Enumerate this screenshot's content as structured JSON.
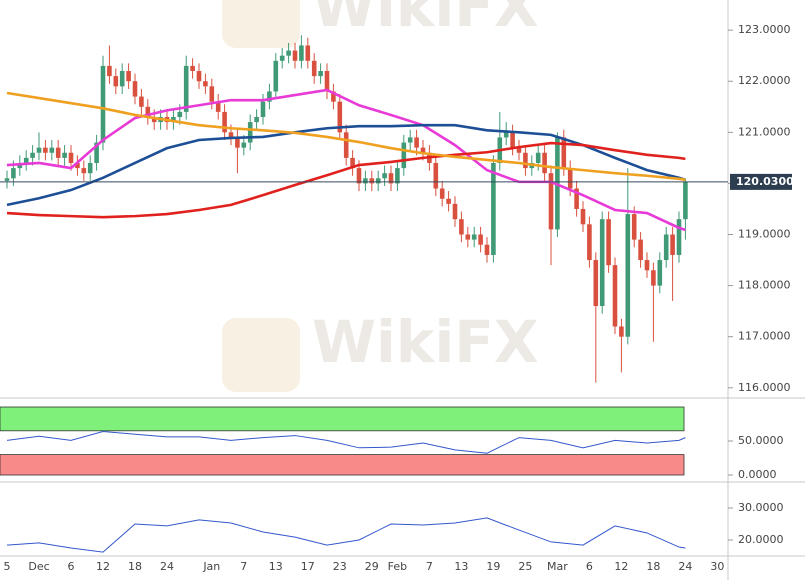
{
  "watermark": "WikiFX",
  "chart_data": [
    {
      "type": "candlestick",
      "up_color": "#3f9a75",
      "down_color": "#d9503f",
      "categories": [
        "5",
        null,
        null,
        null,
        null,
        "Dec",
        null,
        null,
        null,
        null,
        "6",
        null,
        null,
        null,
        null,
        "12",
        null,
        null,
        null,
        null,
        "18",
        null,
        null,
        null,
        null,
        "24",
        null,
        null,
        null,
        null,
        null,
        null,
        "Jan",
        null,
        null,
        null,
        null,
        "7",
        null,
        null,
        null,
        null,
        "13",
        null,
        null,
        null,
        null,
        "17",
        null,
        null,
        null,
        null,
        "23",
        null,
        null,
        null,
        null,
        "29",
        null,
        null,
        null,
        "Feb",
        null,
        null,
        null,
        null,
        "7",
        null,
        null,
        null,
        null,
        "13",
        null,
        null,
        null,
        null,
        "19",
        null,
        null,
        null,
        null,
        "25",
        null,
        null,
        null,
        null,
        "Mar",
        null,
        null,
        null,
        null,
        "6",
        null,
        null,
        null,
        null,
        "12",
        null,
        null,
        null,
        null,
        "18",
        null,
        null,
        null,
        null,
        "24",
        null,
        null,
        null,
        null,
        "30"
      ],
      "open": [
        120.05,
        120.1,
        120.3,
        120.4,
        120.5,
        120.6,
        120.7,
        120.6,
        120.7,
        120.5,
        120.6,
        120.4,
        120.3,
        120.2,
        120.4,
        120.8,
        122.3,
        122.1,
        121.9,
        122.2,
        122.0,
        121.7,
        121.5,
        121.3,
        121.2,
        121.3,
        121.2,
        121.3,
        121.4,
        122.3,
        122.2,
        122.0,
        121.9,
        121.6,
        121.4,
        121.0,
        120.9,
        120.7,
        120.8,
        121.2,
        121.3,
        121.6,
        121.8,
        122.4,
        122.5,
        122.6,
        122.4,
        122.7,
        122.4,
        122.1,
        122.2,
        121.8,
        121.6,
        121.0,
        120.5,
        120.3,
        120.0,
        120.1,
        120.0,
        120.1,
        120.2,
        120.0,
        120.3,
        120.8,
        120.9,
        120.7,
        120.6,
        120.4,
        119.9,
        119.7,
        119.6,
        119.3,
        119.0,
        118.9,
        119.0,
        118.8,
        118.6,
        120.4,
        120.9,
        121.0,
        120.7,
        120.6,
        120.3,
        120.4,
        120.6,
        120.2,
        119.1,
        120.9,
        120.3,
        119.9,
        119.5,
        119.2,
        118.5,
        117.6,
        119.3,
        118.4,
        117.2,
        117.0,
        119.4,
        118.9,
        118.5,
        118.3,
        118.0,
        118.5,
        119.0,
        118.6,
        119.3,
        null,
        null,
        null,
        null,
        null
      ],
      "high": [
        120.25,
        120.45,
        120.55,
        120.65,
        120.75,
        121.0,
        120.85,
        120.85,
        120.85,
        120.75,
        120.75,
        120.55,
        120.45,
        120.55,
        120.95,
        122.5,
        122.7,
        122.25,
        122.35,
        122.35,
        122.15,
        121.85,
        121.65,
        121.45,
        121.45,
        121.45,
        121.45,
        121.55,
        122.5,
        122.45,
        122.35,
        122.15,
        122.05,
        121.75,
        121.55,
        121.15,
        121.05,
        120.95,
        121.35,
        121.45,
        121.75,
        121.95,
        122.55,
        122.65,
        122.75,
        122.75,
        122.9,
        122.85,
        122.55,
        122.35,
        122.35,
        121.95,
        121.75,
        121.15,
        120.65,
        120.45,
        120.25,
        120.25,
        120.25,
        120.35,
        120.35,
        120.45,
        120.95,
        121.05,
        121.05,
        120.85,
        120.75,
        120.55,
        120.05,
        119.85,
        119.75,
        119.45,
        119.15,
        119.15,
        119.15,
        118.95,
        120.55,
        121.4,
        121.2,
        121.15,
        120.85,
        120.75,
        120.55,
        120.75,
        120.75,
        120.35,
        121.0,
        121.05,
        120.45,
        120.05,
        119.65,
        119.35,
        118.65,
        119.45,
        119.45,
        118.55,
        117.35,
        120.3,
        119.55,
        119.05,
        118.65,
        118.45,
        118.65,
        119.15,
        119.15,
        119.45,
        120.1,
        null,
        null,
        null,
        null,
        null
      ],
      "low": [
        119.9,
        119.95,
        120.15,
        120.25,
        120.35,
        120.45,
        120.45,
        120.45,
        120.35,
        120.35,
        120.25,
        120.15,
        120.05,
        120.05,
        120.25,
        120.65,
        121.95,
        121.75,
        121.75,
        121.85,
        121.55,
        121.35,
        121.15,
        121.05,
        121.05,
        121.05,
        121.05,
        121.15,
        121.25,
        122.05,
        121.85,
        121.75,
        121.45,
        121.25,
        120.85,
        120.75,
        120.2,
        120.55,
        120.65,
        121.05,
        121.15,
        121.45,
        121.65,
        122.25,
        122.35,
        122.25,
        122.25,
        122.25,
        121.95,
        121.95,
        121.65,
        121.45,
        120.85,
        120.35,
        120.15,
        119.85,
        119.85,
        119.85,
        119.85,
        119.95,
        119.85,
        119.85,
        120.15,
        120.65,
        120.55,
        120.45,
        120.25,
        119.75,
        119.55,
        119.45,
        119.15,
        118.85,
        118.75,
        118.75,
        118.65,
        118.45,
        118.45,
        120.25,
        120.75,
        120.55,
        120.45,
        120.15,
        120.15,
        120.25,
        120.05,
        118.4,
        118.95,
        120.15,
        119.75,
        119.35,
        119.05,
        118.35,
        116.1,
        117.45,
        118.25,
        117.05,
        116.3,
        116.85,
        118.75,
        118.35,
        118.15,
        116.9,
        117.85,
        118.35,
        117.7,
        118.45,
        118.9,
        null,
        null,
        null,
        null,
        null
      ],
      "close": [
        120.1,
        120.3,
        120.4,
        120.5,
        120.6,
        120.7,
        120.6,
        120.7,
        120.5,
        120.6,
        120.4,
        120.3,
        120.2,
        120.4,
        120.8,
        122.3,
        122.1,
        121.9,
        122.2,
        122.0,
        121.7,
        121.5,
        121.3,
        121.2,
        121.3,
        121.2,
        121.3,
        121.4,
        122.3,
        122.2,
        122.0,
        121.9,
        121.6,
        121.4,
        121.0,
        120.9,
        120.7,
        120.8,
        121.2,
        121.3,
        121.6,
        121.8,
        122.4,
        122.5,
        122.6,
        122.4,
        122.7,
        122.4,
        122.1,
        122.2,
        121.8,
        121.6,
        121.0,
        120.5,
        120.3,
        120.0,
        120.1,
        120.0,
        120.1,
        120.2,
        120.0,
        120.3,
        120.8,
        120.9,
        120.7,
        120.6,
        120.4,
        119.9,
        119.7,
        119.6,
        119.3,
        119.0,
        118.9,
        119.0,
        118.8,
        118.6,
        120.4,
        120.9,
        121.0,
        120.7,
        120.6,
        120.3,
        120.4,
        120.6,
        120.2,
        119.1,
        120.9,
        120.3,
        119.9,
        119.5,
        119.2,
        118.5,
        117.6,
        119.3,
        118.4,
        117.2,
        117.0,
        119.4,
        118.9,
        118.5,
        118.3,
        118.0,
        118.5,
        119.0,
        118.6,
        119.3,
        120.03,
        null,
        null,
        null,
        null,
        null
      ],
      "lines": [
        {
          "color": "#e83ad6",
          "x": [
            0,
            5,
            10,
            15,
            20,
            25,
            30,
            35,
            40,
            45,
            50,
            55,
            60,
            65,
            70,
            75,
            80,
            85,
            90,
            95,
            100,
            105,
            106
          ],
          "values": [
            120.36,
            120.4,
            120.3,
            120.85,
            121.28,
            121.43,
            121.53,
            121.63,
            121.63,
            121.73,
            121.83,
            121.53,
            121.34,
            121.14,
            120.75,
            120.26,
            120.03,
            120.03,
            119.77,
            119.48,
            119.42,
            119.13,
            119.09
          ]
        },
        {
          "color": "#1d4f96",
          "x": [
            0,
            5,
            10,
            15,
            20,
            25,
            30,
            35,
            40,
            45,
            50,
            55,
            60,
            65,
            70,
            75,
            80,
            85,
            90,
            95,
            100,
            105,
            106
          ],
          "values": [
            119.58,
            119.71,
            119.87,
            120.11,
            120.4,
            120.69,
            120.85,
            120.89,
            120.91,
            121.0,
            121.08,
            121.12,
            121.12,
            121.14,
            121.14,
            121.04,
            121.0,
            120.95,
            120.75,
            120.5,
            120.26,
            120.11,
            120.07
          ]
        },
        {
          "color": "#e0211d",
          "x": [
            0,
            5,
            10,
            15,
            20,
            25,
            30,
            35,
            40,
            45,
            50,
            55,
            60,
            65,
            70,
            75,
            80,
            85,
            90,
            95,
            100,
            105,
            106
          ],
          "values": [
            119.42,
            119.38,
            119.36,
            119.34,
            119.36,
            119.4,
            119.48,
            119.58,
            119.77,
            119.97,
            120.16,
            120.36,
            120.42,
            120.5,
            120.56,
            120.61,
            120.71,
            120.79,
            120.75,
            120.65,
            120.56,
            120.5,
            120.48
          ]
        },
        {
          "color": "#f0a020",
          "x": [
            0,
            5,
            10,
            15,
            20,
            25,
            30,
            35,
            40,
            45,
            50,
            55,
            60,
            65,
            70,
            75,
            80,
            85,
            90,
            95,
            100,
            105,
            106
          ],
          "values": [
            121.77,
            121.67,
            121.57,
            121.47,
            121.34,
            121.24,
            121.14,
            121.08,
            121.04,
            120.99,
            120.91,
            120.81,
            120.69,
            120.59,
            120.52,
            120.46,
            120.4,
            120.32,
            120.26,
            120.2,
            120.15,
            120.09,
            120.07
          ]
        }
      ],
      "last_price": {
        "value": 120.03,
        "label": "120.0300"
      },
      "ylim": [
        115.8,
        123.59
      ],
      "yticks": [
        {
          "value": 116,
          "label": "116.0000"
        },
        {
          "value": 117,
          "label": "117.0000"
        },
        {
          "value": 118,
          "label": "118.0000"
        },
        {
          "value": 119,
          "label": "119.0000"
        },
        {
          "value": 120,
          "label": "120.0000"
        },
        {
          "value": 121,
          "label": "121.0000"
        },
        {
          "value": 122,
          "label": "122.0000"
        },
        {
          "value": 123,
          "label": "123.0000"
        }
      ]
    },
    {
      "type": "line",
      "zones": [
        {
          "range": [
            65,
            100
          ],
          "color": "#7ff07a"
        },
        {
          "range": [
            0,
            30
          ],
          "color": "#f98a8a"
        }
      ],
      "series": [
        {
          "color": "#3357cc",
          "x": [
            0,
            5,
            10,
            15,
            20,
            25,
            30,
            35,
            40,
            45,
            50,
            55,
            60,
            65,
            70,
            75,
            80,
            85,
            90,
            95,
            100,
            105,
            106
          ],
          "values": [
            51,
            57,
            51,
            64,
            60,
            56,
            56,
            51,
            55,
            58,
            51,
            40,
            41,
            47,
            37,
            32,
            55,
            51,
            40,
            51,
            47,
            51,
            55
          ]
        }
      ],
      "ylim": [
        -7.35,
        105.9
      ],
      "yticks": [
        {
          "value": 0,
          "label": "0.0000"
        },
        {
          "value": 50,
          "label": "50.0000"
        }
      ]
    },
    {
      "type": "line",
      "series": [
        {
          "color": "#3357cc",
          "x": [
            0,
            5,
            10,
            15,
            20,
            25,
            30,
            35,
            40,
            45,
            50,
            55,
            60,
            65,
            70,
            75,
            80,
            85,
            90,
            95,
            100,
            105,
            106
          ],
          "values": [
            18.4,
            19.1,
            17.5,
            16.2,
            25.0,
            24.4,
            26.3,
            25.3,
            22.5,
            20.9,
            18.4,
            20.0,
            25.0,
            24.7,
            25.3,
            26.9,
            23.1,
            19.4,
            18.4,
            24.4,
            22.2,
            17.8,
            17.5
          ]
        }
      ],
      "ylim": [
        15.31,
        37.19
      ],
      "yticks": [
        {
          "value": 20,
          "label": "20.0000"
        },
        {
          "value": 30,
          "label": "30.0000"
        }
      ]
    }
  ]
}
